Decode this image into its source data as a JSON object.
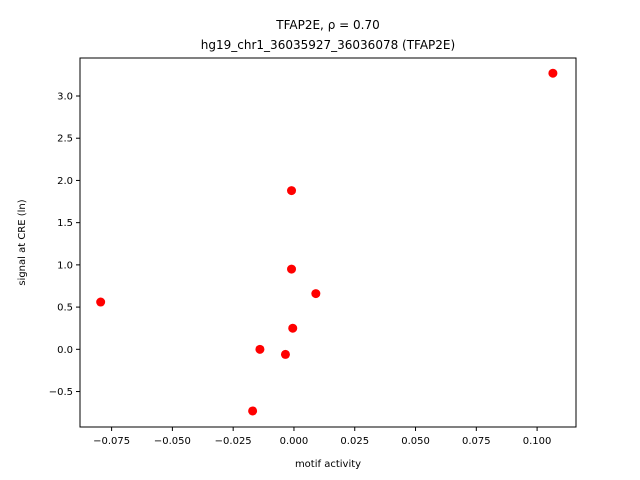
{
  "chart_data": {
    "type": "scatter",
    "title_line1": "TFAP2E, ρ = 0.70",
    "title_line2": "hg19_chr1_36035927_36036078 (TFAP2E)",
    "xlabel": "motif activity",
    "ylabel": "signal at CRE (ln)",
    "xlim": [
      -0.088,
      0.116
    ],
    "ylim": [
      -0.92,
      3.45
    ],
    "xticks": [
      -0.075,
      -0.05,
      -0.025,
      0.0,
      0.025,
      0.05,
      0.075,
      0.1
    ],
    "xtick_labels": [
      "−0.075",
      "−0.050",
      "−0.025",
      "0.000",
      "0.025",
      "0.050",
      "0.075",
      "0.100"
    ],
    "yticks": [
      -0.5,
      0.0,
      0.5,
      1.0,
      1.5,
      2.0,
      2.5,
      3.0
    ],
    "ytick_labels": [
      "−0.5",
      "0.0",
      "0.5",
      "1.0",
      "1.5",
      "2.0",
      "2.5",
      "3.0"
    ],
    "marker_color": "#ff0000",
    "grid": false,
    "legend": "none",
    "points": [
      {
        "x": -0.0795,
        "y": 0.56
      },
      {
        "x": -0.017,
        "y": -0.73
      },
      {
        "x": -0.014,
        "y": 0.0
      },
      {
        "x": -0.0035,
        "y": -0.06
      },
      {
        "x": -0.001,
        "y": 1.88
      },
      {
        "x": -0.001,
        "y": 0.95
      },
      {
        "x": -0.0005,
        "y": 0.25
      },
      {
        "x": 0.009,
        "y": 0.66
      },
      {
        "x": 0.1065,
        "y": 3.27
      }
    ]
  }
}
